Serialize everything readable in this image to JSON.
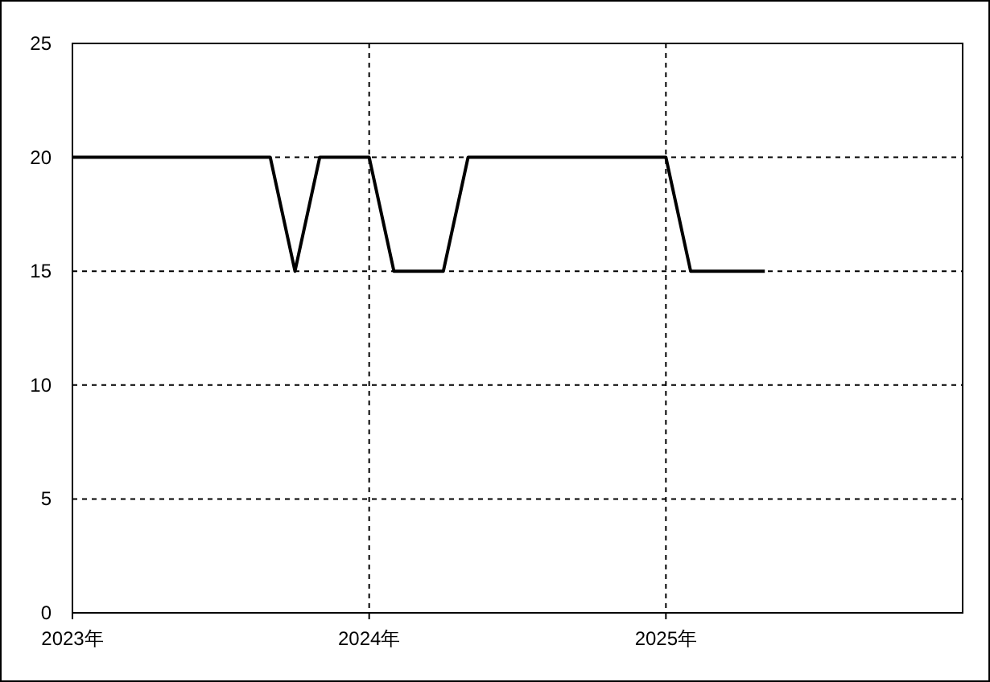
{
  "chart_data": {
    "type": "line",
    "color": "#000000",
    "marker": "none",
    "line_style": "solid",
    "grid": true,
    "x": [
      "2023-01",
      "2023-02",
      "2023-03",
      "2023-04",
      "2023-05",
      "2023-06",
      "2023-07",
      "2023-08",
      "2023-09",
      "2023-10",
      "2023-11",
      "2023-12",
      "2024-01",
      "2024-02",
      "2024-03",
      "2024-04",
      "2024-05",
      "2024-06",
      "2024-07",
      "2024-08",
      "2024-09",
      "2024-10",
      "2024-11",
      "2024-12",
      "2025-01",
      "2025-02",
      "2025-03",
      "2025-04",
      "2025-05"
    ],
    "values": [
      20,
      20,
      20,
      20,
      20,
      20,
      20,
      20,
      20,
      15,
      20,
      20,
      20,
      15,
      15,
      15,
      20,
      20,
      20,
      20,
      20,
      20,
      20,
      20,
      20,
      15,
      15,
      15,
      15
    ],
    "xlim": [
      "2023-01",
      "2026-01"
    ],
    "xticks": [
      {
        "value": "2023-01",
        "label": "2023年"
      },
      {
        "value": "2024-01",
        "label": "2024年"
      },
      {
        "value": "2025-01",
        "label": "2025年"
      }
    ],
    "ylim": [
      0,
      25
    ],
    "yticks": [
      0,
      5,
      10,
      15,
      20,
      25
    ]
  }
}
